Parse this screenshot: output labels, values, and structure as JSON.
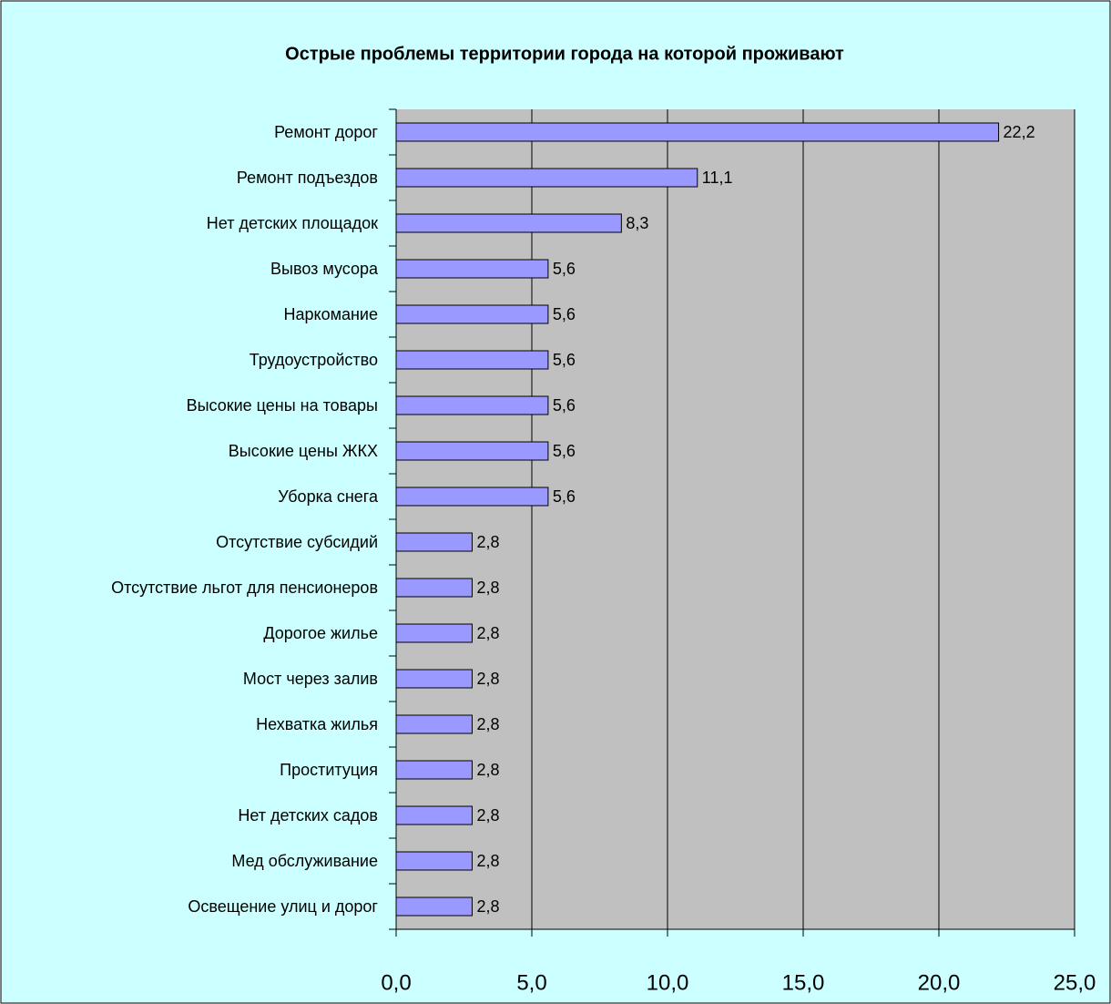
{
  "chart_data": {
    "type": "barh",
    "title": "Острые проблемы территории города на которой проживают",
    "categories": [
      "Ремонт дорог",
      "Ремонт подъездов",
      "Нет детских площадок",
      "Вывоз мусора",
      "Наркомание",
      "Трудоустройство",
      "Высокие цены на товары",
      "Высокие цены ЖКХ",
      "Уборка снега",
      "Отсутствие субсидий",
      "Отсутствие льгот для пенсионеров",
      "Дорогое жилье",
      "Мост через залив",
      "Нехватка жилья",
      "Проституция",
      "Нет детских садов",
      "Мед обслуживание",
      "Освещение улиц и дорог"
    ],
    "values": [
      22.2,
      11.1,
      8.3,
      5.6,
      5.6,
      5.6,
      5.6,
      5.6,
      5.6,
      2.8,
      2.8,
      2.8,
      2.8,
      2.8,
      2.8,
      2.8,
      2.8,
      2.8
    ],
    "value_labels": [
      "22,2",
      "11,1",
      "8,3",
      "5,6",
      "5,6",
      "5,6",
      "5,6",
      "5,6",
      "5,6",
      "2,8",
      "2,8",
      "2,8",
      "2,8",
      "2,8",
      "2,8",
      "2,8",
      "2,8",
      "2,8"
    ],
    "color": "#9999ff",
    "xlim": [
      0,
      25
    ],
    "xticks": [
      {
        "value": 0,
        "label": "0,0"
      },
      {
        "value": 5,
        "label": "5,0"
      },
      {
        "value": 10,
        "label": "10,0"
      },
      {
        "value": 15,
        "label": "15,0"
      },
      {
        "value": 20,
        "label": "20,0"
      },
      {
        "value": 25,
        "label": "25,0"
      }
    ],
    "grid": true
  }
}
